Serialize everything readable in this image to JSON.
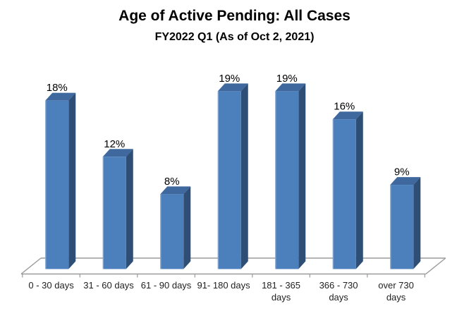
{
  "title": "Age of Active Pending: All Cases",
  "subtitle": "FY2022 Q1 (As of Oct 2, 2021)",
  "chart_data": {
    "type": "bar",
    "style": "3d-column",
    "title": "Age of Active Pending: All Cases",
    "subtitle": "FY2022 Q1 (As of Oct 2, 2021)",
    "categories": [
      "0 - 30 days",
      "31 - 60 days",
      "61 - 90 days",
      "91- 180 days",
      "181 - 365\ndays",
      "366 - 730\ndays",
      "over 730\ndays"
    ],
    "values": [
      18,
      12,
      8,
      19,
      19,
      16,
      9
    ],
    "data_labels": [
      "18%",
      "12%",
      "8%",
      "19%",
      "19%",
      "16%",
      "9%"
    ],
    "unit": "percent of cases",
    "xlabel": "",
    "ylabel": "",
    "ylim": [
      0,
      20
    ],
    "grid": false,
    "legend": false,
    "colors": {
      "bar_front": "#4C80BC",
      "bar_top": "#3E689E",
      "bar_side": "#2E4E75",
      "bar_left_highlight": "#8FAFD4",
      "axis_line": "#9b9b9b",
      "category_text": "#1f1f1f",
      "value_text": "#000000",
      "background": "#ffffff"
    }
  }
}
